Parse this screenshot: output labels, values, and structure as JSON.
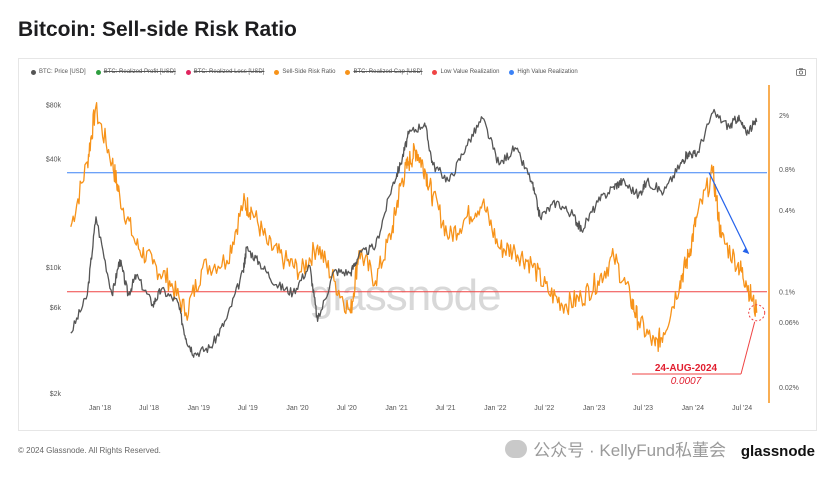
{
  "title": "Bitcoin: Sell-side Risk Ratio",
  "legend": [
    {
      "label": "BTC: Price [USD]",
      "color": "#555555",
      "struck": false
    },
    {
      "label": "BTC: Realized Profit [USD]",
      "color": "#2e9e3f",
      "struck": true
    },
    {
      "label": "BTC: Realized Loss [USD]",
      "color": "#e0245e",
      "struck": true
    },
    {
      "label": "Sell-Side Risk Ratio",
      "color": "#f7931a",
      "struck": false
    },
    {
      "label": "BTC: Realized Cap [USD]",
      "color": "#f7931a",
      "struck": true
    },
    {
      "label": "Low Value Realization",
      "color": "#ef4444",
      "struck": false
    },
    {
      "label": "High Value Realization",
      "color": "#3b82f6",
      "struck": false
    }
  ],
  "watermark": "glassnode",
  "footer": "© 2024 Glassnode. All Rights Reserved.",
  "wechat_watermark": "公众号 · KellyFund私董会",
  "brand": "glassnode",
  "annotation": {
    "date": "24-AUG-2024",
    "value": "0.0007"
  },
  "chart_data": {
    "type": "line",
    "x_ticks": [
      "Jan '18",
      "Jul '18",
      "Jan '19",
      "Jul '19",
      "Jan '20",
      "Jul '20",
      "Jan '21",
      "Jul '21",
      "Jan '22",
      "Jul '22",
      "Jan '23",
      "Jul '23",
      "Jan '24",
      "Jul '24"
    ],
    "left_axis": {
      "scale": "log",
      "ticks": [
        "$80k",
        "$40k",
        "$10k",
        "$6k",
        "$2k"
      ],
      "values": [
        80000,
        40000,
        10000,
        6000,
        2000
      ]
    },
    "right_axis": {
      "scale": "log",
      "ticks": [
        "2%",
        "0.8%",
        "0.4%",
        "0.1%",
        "0.06%",
        "0.02%"
      ],
      "values": [
        0.02,
        0.008,
        0.004,
        0.001,
        0.0006,
        0.0002
      ]
    },
    "thresholds": {
      "high_value_realization": 0.0075,
      "low_value_realization": 0.001
    },
    "series": [
      {
        "name": "BTC: Price [USD]",
        "axis": "left",
        "color": "#555555",
        "points": [
          [
            "2017-09",
            4300
          ],
          [
            "2017-11",
            7000
          ],
          [
            "2017-12-17",
            19000
          ],
          [
            "2018-02",
            7000
          ],
          [
            "2018-03",
            11000
          ],
          [
            "2018-04",
            7000
          ],
          [
            "2018-05",
            9000
          ],
          [
            "2018-07",
            6200
          ],
          [
            "2018-08",
            7500
          ],
          [
            "2018-10",
            6400
          ],
          [
            "2018-11",
            4000
          ],
          [
            "2018-12",
            3300
          ],
          [
            "2019-02",
            3600
          ],
          [
            "2019-04",
            5200
          ],
          [
            "2019-06",
            9500
          ],
          [
            "2019-06-26",
            12800
          ],
          [
            "2019-08",
            10500
          ],
          [
            "2019-10",
            8000
          ],
          [
            "2019-12",
            7200
          ],
          [
            "2020-02",
            10200
          ],
          [
            "2020-03",
            5000
          ],
          [
            "2020-05",
            9500
          ],
          [
            "2020-07",
            9300
          ],
          [
            "2020-08",
            11700
          ],
          [
            "2020-10",
            13000
          ],
          [
            "2020-12",
            28000
          ],
          [
            "2021-01",
            37000
          ],
          [
            "2021-02",
            55000
          ],
          [
            "2021-04",
            63000
          ],
          [
            "2021-05",
            37000
          ],
          [
            "2021-07",
            30000
          ],
          [
            "2021-09",
            47000
          ],
          [
            "2021-11",
            67000
          ],
          [
            "2022-01",
            37000
          ],
          [
            "2022-03",
            46000
          ],
          [
            "2022-05",
            30000
          ],
          [
            "2022-06",
            19000
          ],
          [
            "2022-08",
            23000
          ],
          [
            "2022-10",
            19500
          ],
          [
            "2022-11",
            16000
          ],
          [
            "2023-01",
            23000
          ],
          [
            "2023-03",
            28000
          ],
          [
            "2023-04",
            30000
          ],
          [
            "2023-06",
            25000
          ],
          [
            "2023-07",
            30000
          ],
          [
            "2023-09",
            26000
          ],
          [
            "2023-11",
            37000
          ],
          [
            "2023-12",
            43000
          ],
          [
            "2024-01",
            42000
          ],
          [
            "2024-03",
            72000
          ],
          [
            "2024-05",
            60000
          ],
          [
            "2024-06",
            68000
          ],
          [
            "2024-07",
            56000
          ],
          [
            "2024-08-24",
            64000
          ]
        ]
      },
      {
        "name": "Sell-Side Risk Ratio",
        "axis": "right",
        "color": "#f7931a",
        "points": [
          [
            "2017-09",
            0.003
          ],
          [
            "2017-11",
            0.009
          ],
          [
            "2017-12",
            0.022
          ],
          [
            "2018-02",
            0.009
          ],
          [
            "2018-03",
            0.005
          ],
          [
            "2018-05",
            0.0022
          ],
          [
            "2018-07",
            0.0016
          ],
          [
            "2018-09",
            0.0012
          ],
          [
            "2018-11",
            0.0007
          ],
          [
            "2019-01",
            0.0015
          ],
          [
            "2019-04",
            0.0017
          ],
          [
            "2019-06",
            0.0045
          ],
          [
            "2019-07",
            0.004
          ],
          [
            "2019-09",
            0.0022
          ],
          [
            "2019-11",
            0.0017
          ],
          [
            "2020-01",
            0.0014
          ],
          [
            "2020-03",
            0.0022
          ],
          [
            "2020-05",
            0.0012
          ],
          [
            "2020-07",
            0.0007
          ],
          [
            "2020-08",
            0.002
          ],
          [
            "2020-10",
            0.0012
          ],
          [
            "2020-12",
            0.0028
          ],
          [
            "2021-01",
            0.006
          ],
          [
            "2021-02",
            0.009
          ],
          [
            "2021-03",
            0.011
          ],
          [
            "2021-04",
            0.008
          ],
          [
            "2021-05",
            0.005
          ],
          [
            "2021-07",
            0.0025
          ],
          [
            "2021-09",
            0.0035
          ],
          [
            "2021-11",
            0.0045
          ],
          [
            "2022-01",
            0.0021
          ],
          [
            "2022-03",
            0.002
          ],
          [
            "2022-05",
            0.0016
          ],
          [
            "2022-07",
            0.001
          ],
          [
            "2022-09",
            0.0008
          ],
          [
            "2022-11",
            0.0009
          ],
          [
            "2023-01",
            0.0012
          ],
          [
            "2023-03",
            0.0018
          ],
          [
            "2023-05",
            0.0009
          ],
          [
            "2023-06",
            0.0006
          ],
          [
            "2023-08",
            0.0004
          ],
          [
            "2023-09",
            0.0005
          ],
          [
            "2023-11",
            0.0012
          ],
          [
            "2023-12",
            0.0018
          ],
          [
            "2024-01",
            0.0035
          ],
          [
            "2024-03",
            0.0075
          ],
          [
            "2024-04",
            0.0025
          ],
          [
            "2024-06",
            0.0016
          ],
          [
            "2024-07",
            0.0012
          ],
          [
            "2024-08-24",
            0.0007
          ]
        ]
      }
    ]
  }
}
